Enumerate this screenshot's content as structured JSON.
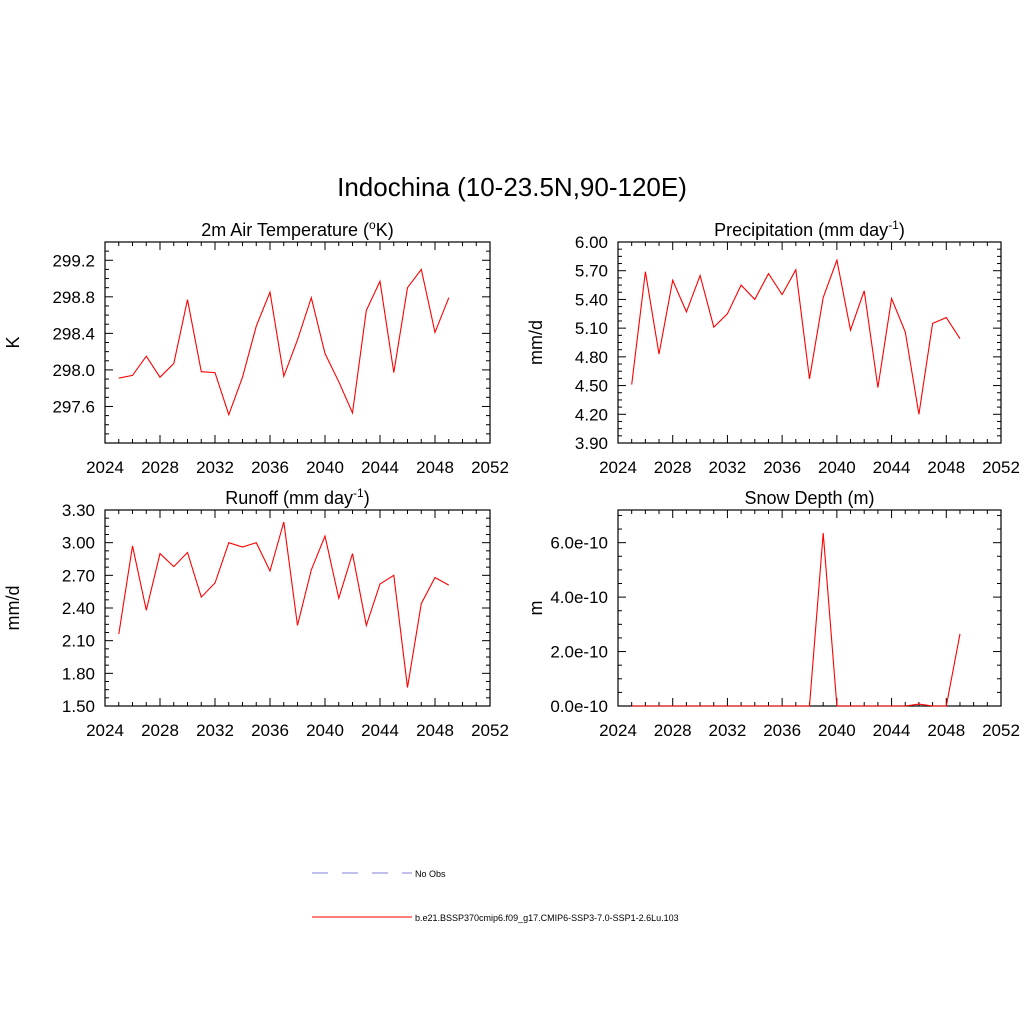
{
  "title": "Indochina (10-23.5N,90-120E)",
  "legend": {
    "entries": [
      {
        "label": "No Obs",
        "color": "#9a9ade",
        "dashed": true
      },
      {
        "label": "b.e21.BSSP370cmip6.f09_g17.CMIP6-SSP3-7.0-SSP1-2.6Lu.103",
        "color": "#ff3333",
        "dashed": false
      }
    ]
  },
  "series_color": "#ff0000",
  "chart_data": [
    {
      "type": "line",
      "title": "2m Air Temperature (",
      "title_sup": "o",
      "title_end": "K)",
      "ylabel": "K",
      "xlim": [
        2024,
        2052
      ],
      "ylim": [
        297.2,
        299.4
      ],
      "xticks": [
        2024,
        2028,
        2032,
        2036,
        2040,
        2044,
        2048,
        2052
      ],
      "yticks": [
        297.6,
        298.0,
        298.4,
        298.8,
        299.2
      ],
      "ytick_labels": [
        "297.6",
        "298.0",
        "298.4",
        "298.8",
        "299.2"
      ],
      "x": [
        2025,
        2026,
        2027,
        2028,
        2029,
        2030,
        2031,
        2032,
        2033,
        2034,
        2035,
        2036,
        2037,
        2038,
        2039,
        2040,
        2041,
        2042,
        2043,
        2044,
        2045,
        2046,
        2047,
        2048,
        2049
      ],
      "values": [
        297.91,
        297.94,
        298.15,
        297.92,
        298.07,
        298.77,
        297.98,
        297.97,
        297.51,
        297.92,
        298.48,
        298.85,
        297.93,
        298.33,
        298.79,
        298.18,
        297.87,
        297.53,
        298.65,
        298.97,
        297.97,
        298.9,
        299.1,
        298.41,
        298.79
      ]
    },
    {
      "type": "line",
      "title": "Precipitation (mm day",
      "title_sup": "-1",
      "title_end": ")",
      "ylabel": "mm/d",
      "xlim": [
        2024,
        2052
      ],
      "ylim": [
        3.9,
        6.0
      ],
      "xticks": [
        2024,
        2028,
        2032,
        2036,
        2040,
        2044,
        2048,
        2052
      ],
      "yticks": [
        3.9,
        4.2,
        4.5,
        4.8,
        5.1,
        5.4,
        5.7,
        6.0
      ],
      "ytick_labels": [
        "3.90",
        "4.20",
        "4.50",
        "4.80",
        "5.10",
        "5.40",
        "5.70",
        "6.00"
      ],
      "x": [
        2025,
        2026,
        2027,
        2028,
        2029,
        2030,
        2031,
        2032,
        2033,
        2034,
        2035,
        2036,
        2037,
        2038,
        2039,
        2040,
        2041,
        2042,
        2043,
        2044,
        2045,
        2046,
        2047,
        2048,
        2049
      ],
      "values": [
        4.51,
        5.69,
        4.83,
        5.6,
        5.27,
        5.65,
        5.11,
        5.25,
        5.55,
        5.4,
        5.67,
        5.45,
        5.71,
        4.57,
        5.42,
        5.81,
        5.08,
        5.49,
        4.48,
        5.41,
        5.06,
        4.2,
        5.15,
        5.21,
        4.99
      ]
    },
    {
      "type": "line",
      "title": "Runoff (mm day",
      "title_sup": "-1",
      "title_end": ")",
      "ylabel": "mm/d",
      "xlim": [
        2024,
        2052
      ],
      "ylim": [
        1.5,
        3.3
      ],
      "xticks": [
        2024,
        2028,
        2032,
        2036,
        2040,
        2044,
        2048,
        2052
      ],
      "yticks": [
        1.5,
        1.8,
        2.1,
        2.4,
        2.7,
        3.0,
        3.3
      ],
      "ytick_labels": [
        "1.50",
        "1.80",
        "2.10",
        "2.40",
        "2.70",
        "3.00",
        "3.30"
      ],
      "x": [
        2025,
        2026,
        2027,
        2028,
        2029,
        2030,
        2031,
        2032,
        2033,
        2034,
        2035,
        2036,
        2037,
        2038,
        2039,
        2040,
        2041,
        2042,
        2043,
        2044,
        2045,
        2046,
        2047,
        2048,
        2049
      ],
      "values": [
        2.16,
        2.97,
        2.38,
        2.9,
        2.78,
        2.91,
        2.5,
        2.63,
        3.0,
        2.96,
        3.0,
        2.74,
        3.19,
        2.24,
        2.75,
        3.06,
        2.49,
        2.9,
        2.24,
        2.62,
        2.7,
        1.67,
        2.44,
        2.68,
        2.61
      ]
    },
    {
      "type": "line",
      "title": "Snow Depth (m)",
      "title_sup": "",
      "title_end": "",
      "ylabel": "m",
      "xlim": [
        2024,
        2052
      ],
      "ylim": [
        0,
        7.2e-10
      ],
      "xticks": [
        2024,
        2028,
        2032,
        2036,
        2040,
        2044,
        2048,
        2052
      ],
      "yticks": [
        0,
        2e-10,
        4e-10,
        6e-10
      ],
      "ytick_labels": [
        "0.0e-10",
        "2.0e-10",
        "4.0e-10",
        "6.0e-10"
      ],
      "x": [
        2025,
        2026,
        2027,
        2028,
        2029,
        2030,
        2031,
        2032,
        2033,
        2034,
        2035,
        2036,
        2037,
        2038,
        2039,
        2040,
        2041,
        2042,
        2043,
        2044,
        2045,
        2046,
        2047,
        2048,
        2049
      ],
      "values": [
        0,
        0,
        0,
        0,
        0,
        0,
        0,
        0,
        0,
        0,
        0,
        0,
        0,
        0,
        6.35e-10,
        0,
        0,
        0,
        0,
        0,
        0,
        7e-12,
        0,
        0,
        2.65e-10
      ]
    }
  ]
}
